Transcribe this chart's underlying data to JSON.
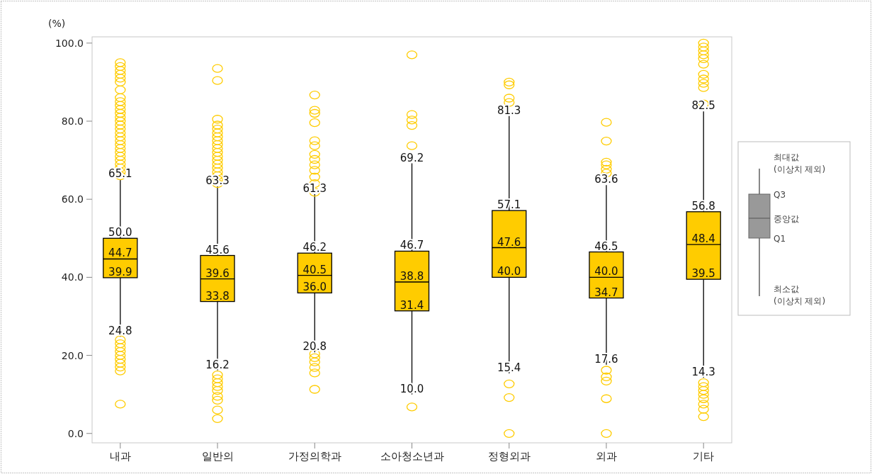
{
  "chart_data": {
    "type": "box",
    "ylabel": "(%)",
    "categories": [
      "내과",
      "일반의",
      "가정의학과",
      "소아청소년과",
      "정형외과",
      "외과",
      "기타"
    ],
    "ylim": [
      -2.4,
      101.6
    ],
    "yticks": [
      {
        "value": 0,
        "label": "0.0"
      },
      {
        "value": 20,
        "label": "20.0"
      },
      {
        "value": 40,
        "label": "40.0"
      },
      {
        "value": 60,
        "label": "60.0"
      },
      {
        "value": 80,
        "label": "80.0"
      },
      {
        "value": 100,
        "label": "100.0"
      }
    ],
    "marker": "circle",
    "annotations": [
      "최대값 (이상치 제외)",
      "Q3",
      "중앙값",
      "Q1",
      "최소값 (이상치 제외)"
    ],
    "series": [
      {
        "color": "#ffcc00",
        "value_labels": [
          [
            "24.8",
            "39.9",
            "44.7",
            "50.0",
            "65.1"
          ],
          [
            "16.2",
            "33.8",
            "39.6",
            "45.6",
            "63.3"
          ],
          [
            "20.8",
            "36.0",
            "40.5",
            "46.2",
            "61.3"
          ],
          [
            "10.0",
            "31.4",
            "38.8",
            "46.7",
            "69.2"
          ],
          [
            "15.4",
            "40.0",
            "47.6",
            "57.1",
            "81.3"
          ],
          [
            "17.6",
            "34.7",
            "40.0",
            "46.5",
            "63.6"
          ],
          [
            "14.3",
            "39.5",
            "48.4",
            "56.8",
            "82.5"
          ]
        ],
        "boxes": [
          {
            "low": 24.8,
            "q1": 39.9,
            "median": 44.7,
            "q3": 50.0,
            "high": 65.1,
            "outliers": [
              66,
              67,
              68,
              69,
              70,
              71,
              72,
              73,
              74,
              75,
              76,
              77,
              78,
              79,
              80,
              81,
              82,
              83,
              84,
              85,
              86,
              88,
              90,
              91,
              92,
              93,
              94,
              95,
              24,
              23,
              22,
              21,
              20,
              19,
              18,
              17,
              16,
              7.5
            ]
          },
          {
            "low": 16.2,
            "q1": 33.8,
            "median": 39.6,
            "q3": 45.6,
            "high": 63.3,
            "outliers": [
              93.5,
              90.4,
              80.5,
              79,
              78,
              77,
              76,
              75,
              74,
              73,
              72,
              71,
              70,
              69,
              68,
              67,
              66,
              65,
              64,
              15,
              14,
              13,
              12,
              11,
              9.5,
              8.5,
              6,
              3.8
            ]
          },
          {
            "low": 20.8,
            "q1": 36.0,
            "median": 40.5,
            "q3": 46.2,
            "high": 61.3,
            "outliers": [
              86.7,
              82.8,
              82,
              79.6,
              75,
              73.7,
              71.5,
              70.2,
              68.8,
              67.4,
              65.7,
              64,
              61.8,
              20.4,
              19.4,
              18.3,
              16.9,
              15.5,
              11.3
            ]
          },
          {
            "low": 10.0,
            "q1": 31.4,
            "median": 38.8,
            "q3": 46.7,
            "high": 69.2,
            "outliers": [
              97,
              81.7,
              80.3,
              78.9,
              73.7,
              6.8
            ]
          },
          {
            "low": 15.4,
            "q1": 40.0,
            "median": 47.6,
            "q3": 57.1,
            "high": 81.3,
            "outliers": [
              90,
              89.3,
              85.9,
              84.8,
              12.7,
              9.2,
              0
            ]
          },
          {
            "low": 17.6,
            "q1": 34.7,
            "median": 40.0,
            "q3": 46.5,
            "high": 63.6,
            "outliers": [
              79.7,
              74.9,
              69.5,
              68.8,
              67.7,
              66.7,
              16.2,
              14.5,
              13.4,
              8.9,
              0
            ]
          },
          {
            "low": 14.3,
            "q1": 39.5,
            "median": 48.4,
            "q3": 56.8,
            "high": 82.5,
            "outliers": [
              100,
              99,
              98,
              97,
              96,
              94.6,
              92,
              90.8,
              89.7,
              88.6,
              84.4,
              13,
              12,
              11,
              10,
              8.9,
              7.5,
              6.2,
              4.3
            ]
          }
        ]
      }
    ]
  }
}
